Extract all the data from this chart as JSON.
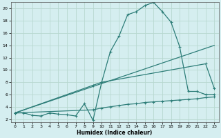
{
  "bg_color": "#d5eef0",
  "line_color": "#2d7d78",
  "grid_color": "#b8d8d0",
  "xlabel": "Humidex (Indice chaleur)",
  "xlim": [
    -0.5,
    23.5
  ],
  "ylim": [
    1.5,
    21
  ],
  "yticks": [
    2,
    4,
    6,
    8,
    10,
    12,
    14,
    16,
    18,
    20
  ],
  "xticks": [
    0,
    1,
    2,
    3,
    4,
    5,
    6,
    7,
    8,
    9,
    10,
    11,
    12,
    13,
    14,
    15,
    16,
    17,
    18,
    19,
    20,
    21,
    22,
    23
  ],
  "curve1_x": [
    0,
    1,
    2,
    3,
    4,
    5,
    6,
    7,
    8,
    9,
    10,
    11,
    12,
    13,
    14,
    15,
    16,
    17,
    18,
    19,
    20,
    21,
    22,
    23
  ],
  "curve1_y": [
    3.0,
    3.0,
    2.6,
    2.5,
    3.0,
    2.8,
    2.7,
    2.5,
    4.5,
    1.8,
    8.0,
    13.0,
    15.5,
    19.0,
    19.5,
    20.5,
    21.0,
    19.5,
    17.8,
    13.8,
    6.5,
    6.5,
    6.0,
    6.0
  ],
  "curve2_x": [
    0,
    9,
    10,
    22,
    23
  ],
  "curve2_y": [
    3.0,
    7.5,
    8.0,
    11.0,
    7.0
  ],
  "curve3_x": [
    0,
    23
  ],
  "curve3_y": [
    3.0,
    14.0
  ],
  "curve4_x": [
    0,
    9,
    10,
    11,
    12,
    13,
    14,
    15,
    16,
    17,
    18,
    19,
    20,
    21,
    22,
    23
  ],
  "curve4_y": [
    3.0,
    3.5,
    3.8,
    4.0,
    4.2,
    4.4,
    4.5,
    4.7,
    4.8,
    4.9,
    5.0,
    5.1,
    5.2,
    5.3,
    5.5,
    5.6
  ]
}
